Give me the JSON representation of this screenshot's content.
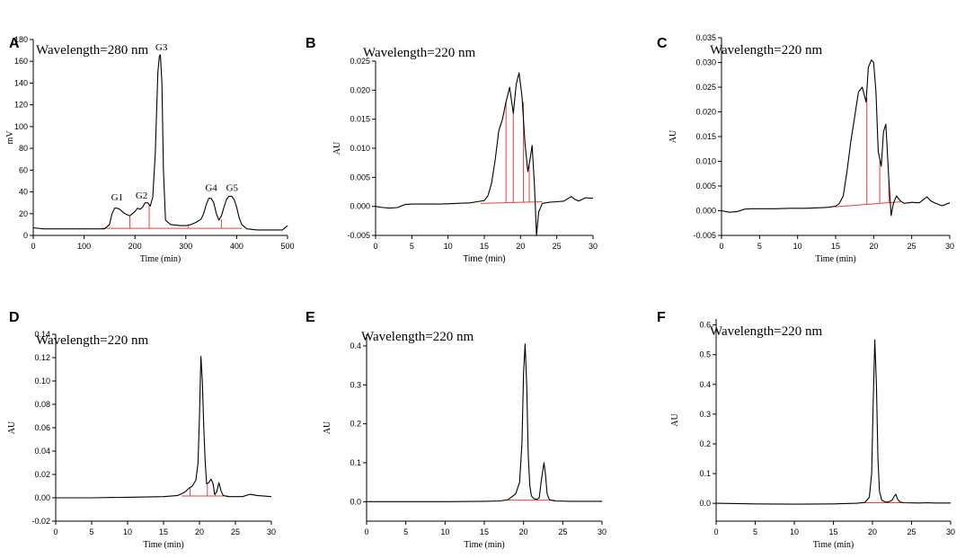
{
  "chart_data": [
    {
      "panel": "A",
      "type": "line",
      "annotation": "Wavelength=280 nm",
      "xlabel": "Time (min)",
      "ylabel": "mV",
      "xlim": [
        0,
        500
      ],
      "ylim": [
        0,
        180
      ],
      "xticks": [
        0,
        100,
        200,
        300,
        400,
        500
      ],
      "yticks": [
        0,
        20,
        40,
        60,
        80,
        100,
        120,
        140,
        160,
        180
      ],
      "peak_labels": [
        {
          "text": "G1",
          "x": 165,
          "y": 32
        },
        {
          "text": "G2",
          "x": 213,
          "y": 34
        },
        {
          "text": "G3",
          "x": 252,
          "y": 170
        },
        {
          "text": "G4",
          "x": 350,
          "y": 41
        },
        {
          "text": "G5",
          "x": 391,
          "y": 41
        }
      ],
      "series": [
        {
          "name": "trace",
          "x": [
            0,
            20,
            60,
            100,
            140,
            150,
            155,
            160,
            165,
            170,
            180,
            190,
            200,
            205,
            210,
            215,
            220,
            225,
            230,
            235,
            240,
            245,
            248,
            250,
            253,
            256,
            260,
            270,
            290,
            300,
            310,
            320,
            330,
            335,
            340,
            345,
            350,
            355,
            360,
            365,
            370,
            375,
            380,
            385,
            390,
            395,
            400,
            405,
            410,
            420,
            440,
            470,
            490,
            500
          ],
          "y": [
            7,
            6,
            6,
            6,
            6,
            10,
            20,
            25,
            25,
            24,
            20,
            18,
            22,
            25,
            24,
            26,
            30,
            30,
            27,
            35,
            75,
            150,
            165,
            166,
            140,
            60,
            14,
            10,
            9,
            9,
            10,
            12,
            15,
            20,
            28,
            34,
            34,
            30,
            20,
            14,
            18,
            26,
            33,
            36,
            36,
            33,
            26,
            16,
            10,
            6,
            5,
            5,
            5,
            9
          ]
        }
      ],
      "baseline": [
        [
          135,
          6.5
        ],
        [
          410,
          6.5
        ]
      ],
      "cut_lines": [
        {
          "x": 190,
          "y": 18
        },
        {
          "x": 228,
          "y": 28
        },
        {
          "x": 305,
          "y": 9
        },
        {
          "x": 370,
          "y": 15
        }
      ]
    },
    {
      "panel": "B",
      "type": "line",
      "annotation": "Wavelength=220 nm",
      "xlabel": "Time (min)",
      "ylabel": "AU",
      "xlim": [
        0,
        30
      ],
      "ylim": [
        -0.005,
        0.025
      ],
      "xticks": [
        0,
        5,
        10,
        15,
        20,
        25,
        30
      ],
      "yticks": [
        -0.005,
        0.0,
        0.005,
        0.01,
        0.015,
        0.02,
        0.025
      ],
      "ytick_labels": [
        "-0.005",
        "0.000",
        "0.005",
        "0.010",
        "0.015",
        "0.020",
        "0.025"
      ],
      "series": [
        {
          "name": "trace",
          "x": [
            0,
            1,
            2,
            3,
            4,
            5,
            7,
            9,
            11,
            13,
            14,
            15,
            15.5,
            16,
            16.5,
            17,
            17.5,
            18,
            18.5,
            19,
            19.4,
            19.8,
            20.2,
            20.6,
            21,
            21.3,
            21.6,
            21.9,
            22.2,
            22.5,
            23,
            24,
            25,
            26,
            27,
            27.5,
            28,
            29,
            29.5,
            30
          ],
          "y": [
            0.0,
            -0.0002,
            -0.0003,
            -0.0002,
            0.0003,
            0.0004,
            0.0004,
            0.0004,
            0.0005,
            0.0006,
            0.0008,
            0.001,
            0.0018,
            0.004,
            0.008,
            0.013,
            0.015,
            0.018,
            0.0205,
            0.016,
            0.021,
            0.023,
            0.019,
            0.011,
            0.006,
            0.008,
            0.0105,
            0.004,
            -0.005,
            -0.001,
            0.0005,
            0.0007,
            0.0008,
            0.0009,
            0.0017,
            0.0012,
            0.0009,
            0.0015,
            0.0014,
            0.0014
          ]
        }
      ],
      "baseline": [
        [
          14.5,
          0.0005
        ],
        [
          23,
          0.0008
        ]
      ],
      "cut_lines": [
        {
          "x": 18.0,
          "y": 0.018
        },
        {
          "x": 19.0,
          "y": 0.016
        },
        {
          "x": 20.4,
          "y": 0.018
        },
        {
          "x": 21.2,
          "y": 0.007
        }
      ]
    },
    {
      "panel": "C",
      "type": "line",
      "annotation": "Wavelength=220 nm",
      "xlabel": "Time (min)",
      "ylabel": "AU",
      "xlim": [
        0,
        30
      ],
      "ylim": [
        -0.005,
        0.035
      ],
      "xticks": [
        0,
        5,
        10,
        15,
        20,
        25,
        30
      ],
      "yticks": [
        -0.005,
        0.0,
        0.005,
        0.01,
        0.015,
        0.02,
        0.025,
        0.03,
        0.035
      ],
      "ytick_labels": [
        "-0.005",
        "0.000",
        "0.005",
        "0.010",
        "0.015",
        "0.020",
        "0.025",
        "0.030",
        "0.035"
      ],
      "series": [
        {
          "name": "trace",
          "x": [
            0,
            1,
            2,
            3,
            4,
            5,
            7,
            9,
            11,
            13,
            14,
            15,
            15.5,
            16,
            16.5,
            17,
            17.5,
            18,
            18.5,
            19,
            19.3,
            19.7,
            20,
            20.3,
            20.6,
            21,
            21.3,
            21.6,
            22,
            22.3,
            22.6,
            23,
            23.5,
            24,
            25,
            26,
            27,
            27.5,
            28,
            29,
            30
          ],
          "y": [
            0.0,
            -0.0003,
            -0.0002,
            0.0003,
            0.0004,
            0.0004,
            0.0004,
            0.0005,
            0.0005,
            0.0006,
            0.0007,
            0.0009,
            0.0015,
            0.003,
            0.008,
            0.014,
            0.019,
            0.024,
            0.025,
            0.022,
            0.029,
            0.0305,
            0.03,
            0.024,
            0.012,
            0.009,
            0.016,
            0.0175,
            0.006,
            -0.001,
            0.0015,
            0.003,
            0.002,
            0.0015,
            0.0017,
            0.0016,
            0.0028,
            0.002,
            0.0016,
            0.001,
            0.0016
          ]
        }
      ],
      "baseline": [
        [
          15,
          0.0008
        ],
        [
          23.5,
          0.0018
        ]
      ],
      "cut_lines": [
        {
          "x": 19.1,
          "y": 0.023
        },
        {
          "x": 20.8,
          "y": 0.01
        },
        {
          "x": 22.0,
          "y": 0.006
        }
      ]
    },
    {
      "panel": "D",
      "type": "line",
      "annotation": "Wavelength=220 nm",
      "xlabel": "Time (min)",
      "ylabel": "AU",
      "xlim": [
        0,
        30
      ],
      "ylim": [
        -0.02,
        0.14
      ],
      "xticks": [
        0,
        5,
        10,
        15,
        20,
        25,
        30
      ],
      "yticks": [
        -0.02,
        0.0,
        0.02,
        0.04,
        0.06,
        0.08,
        0.1,
        0.12,
        0.14
      ],
      "ytick_labels": [
        "-0.02",
        "0.00",
        "0.02",
        "0.04",
        "0.06",
        "0.08",
        "0.10",
        "0.12",
        "0.14"
      ],
      "series": [
        {
          "name": "trace",
          "x": [
            0,
            5,
            10,
            15,
            17,
            18,
            18.5,
            19,
            19.5,
            19.8,
            20,
            20.2,
            20.4,
            20.6,
            20.8,
            21,
            21.3,
            21.6,
            21.9,
            22.1,
            22.4,
            22.7,
            23,
            23.3,
            24,
            26,
            27,
            28,
            30
          ],
          "y": [
            0.0,
            0.0,
            0.0005,
            0.001,
            0.002,
            0.005,
            0.008,
            0.01,
            0.015,
            0.03,
            0.07,
            0.121,
            0.1,
            0.06,
            0.03,
            0.012,
            0.013,
            0.016,
            0.012,
            0.003,
            0.005,
            0.013,
            0.006,
            0.002,
            0.001,
            0.001,
            0.003,
            0.002,
            0.001
          ]
        }
      ],
      "baseline": [
        [
          17.5,
          0.0015
        ],
        [
          24,
          0.0015
        ]
      ],
      "cut_lines": [
        {
          "x": 18.7,
          "y": 0.009
        },
        {
          "x": 21.1,
          "y": 0.012
        },
        {
          "x": 22.2,
          "y": 0.004
        }
      ]
    },
    {
      "panel": "E",
      "type": "line",
      "annotation": "Wavelength=220 nm",
      "xlabel": "Time (min)",
      "ylabel": "AU",
      "xlim": [
        0,
        30
      ],
      "ylim": [
        -0.05,
        0.43
      ],
      "xticks": [
        0,
        5,
        10,
        15,
        20,
        25,
        30
      ],
      "yticks": [
        0.0,
        0.1,
        0.2,
        0.3,
        0.4
      ],
      "ytick_labels": [
        "0.0",
        "0.1",
        "0.2",
        "0.3",
        "0.4"
      ],
      "series": [
        {
          "name": "trace",
          "x": [
            0,
            5,
            10,
            15,
            17,
            18,
            19,
            19.5,
            19.8,
            20,
            20.2,
            20.4,
            20.6,
            20.8,
            21,
            21.3,
            21.7,
            22,
            22.3,
            22.6,
            22.8,
            23,
            23.3,
            24,
            26,
            28,
            30
          ],
          "y": [
            0.0,
            0.0,
            0.0,
            0.001,
            0.002,
            0.005,
            0.02,
            0.05,
            0.15,
            0.33,
            0.405,
            0.3,
            0.12,
            0.04,
            0.015,
            0.008,
            0.006,
            0.01,
            0.06,
            0.1,
            0.07,
            0.02,
            0.005,
            0.002,
            0.001,
            0.001,
            0.001
          ]
        }
      ],
      "baseline": [
        [
          18,
          0.004
        ],
        [
          24,
          0.004
        ]
      ],
      "cut_lines": []
    },
    {
      "panel": "F",
      "type": "line",
      "annotation": "Wavelength=220 nm",
      "xlabel": "Time (min)",
      "ylabel": "AU",
      "xlim": [
        0,
        30
      ],
      "ylim": [
        -0.06,
        0.62
      ],
      "xticks": [
        0,
        5,
        10,
        15,
        20,
        25,
        30
      ],
      "yticks": [
        0.0,
        0.1,
        0.2,
        0.3,
        0.4,
        0.5,
        0.6
      ],
      "ytick_labels": [
        "0.0",
        "0.1",
        "0.2",
        "0.3",
        "0.4",
        "0.5",
        "0.6"
      ],
      "series": [
        {
          "name": "trace",
          "x": [
            0,
            5,
            10,
            15,
            18,
            19,
            19.6,
            19.9,
            20.1,
            20.3,
            20.5,
            20.7,
            20.9,
            21.2,
            21.6,
            22,
            22.5,
            22.8,
            23,
            23.2,
            23.5,
            24,
            26,
            27,
            28,
            30
          ],
          "y": [
            0.0,
            -0.002,
            -0.003,
            -0.002,
            0.0,
            0.003,
            0.02,
            0.1,
            0.35,
            0.55,
            0.4,
            0.15,
            0.04,
            0.01,
            0.005,
            0.004,
            0.01,
            0.025,
            0.03,
            0.015,
            0.005,
            0.002,
            0.001,
            0.002,
            0.001,
            0.001
          ]
        }
      ],
      "baseline": [
        [
          18.5,
          0.002
        ],
        [
          24,
          0.002
        ]
      ],
      "cut_lines": []
    }
  ]
}
